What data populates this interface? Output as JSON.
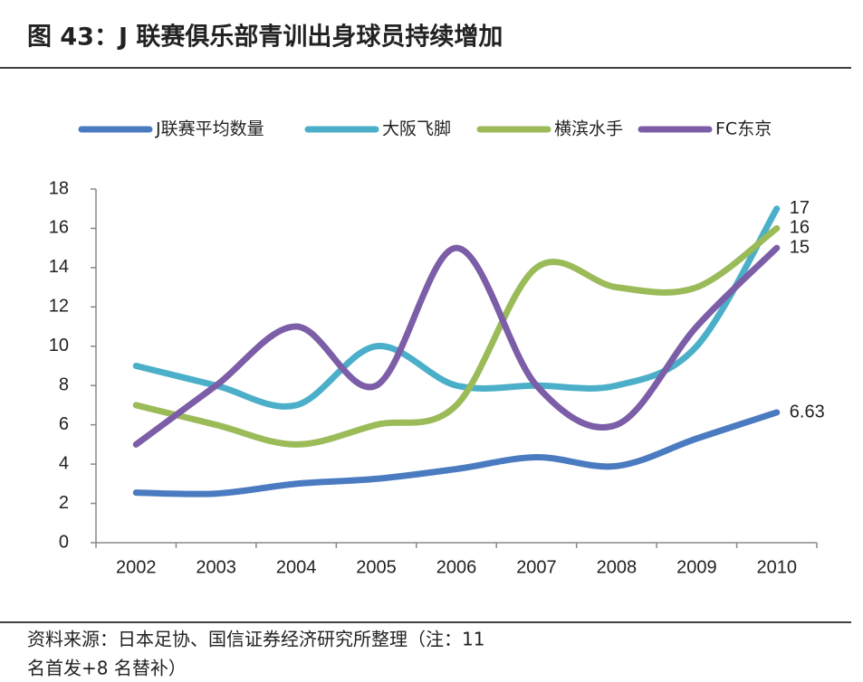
{
  "chart_data": {
    "type": "line",
    "title": "图 43：J 联赛俱乐部青训出身球员持续增加",
    "source": [
      "资料来源：日本足协、国信证券经济研究所整理（注：11",
      "名首发+8 名替补）"
    ],
    "categories": [
      "2002",
      "2003",
      "2004",
      "2005",
      "2006",
      "2007",
      "2008",
      "2009",
      "2010"
    ],
    "series": [
      {
        "name": "J联赛平均数量",
        "color": "#4a7bc1",
        "values": [
          2.55,
          2.5,
          3.0,
          3.25,
          3.75,
          4.35,
          3.9,
          5.3,
          6.63
        ]
      },
      {
        "name": "大阪飞脚",
        "color": "#4bafc9",
        "values": [
          9,
          8,
          7,
          10,
          8,
          8,
          8,
          10,
          17
        ]
      },
      {
        "name": "横滨水手",
        "color": "#9bbb59",
        "values": [
          7,
          6,
          5,
          6,
          7,
          14,
          13,
          13,
          16
        ]
      },
      {
        "name": "FC东京",
        "color": "#7b5ea7",
        "values": [
          5,
          8,
          11,
          8,
          15,
          8,
          6,
          11,
          15
        ]
      }
    ],
    "ylim": [
      0,
      18
    ],
    "yticks": [
      0,
      2,
      4,
      6,
      8,
      10,
      12,
      14,
      16,
      18
    ],
    "smooth": true,
    "label_last": true,
    "legend": "top"
  }
}
